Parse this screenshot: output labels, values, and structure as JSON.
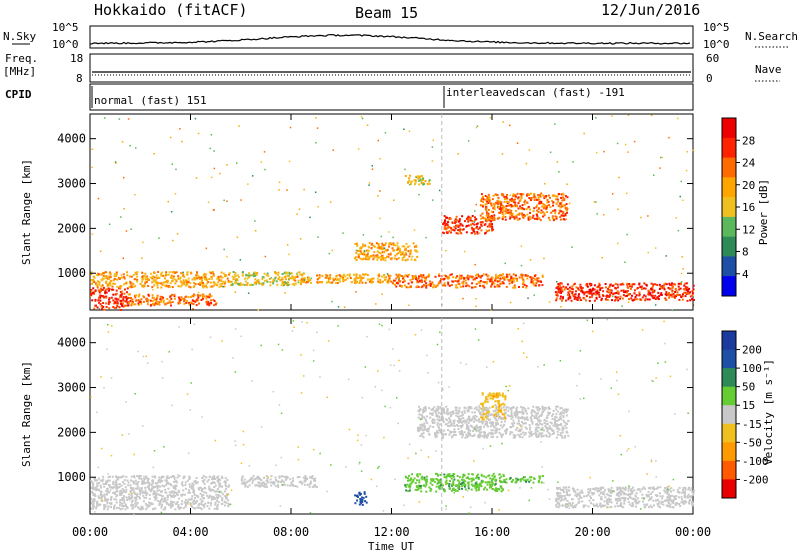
{
  "header": {
    "station": "Hokkaido (fitACF)",
    "beam": "Beam 15",
    "date": "12/Jun/2016"
  },
  "side_labels": {
    "nsky": "N.Sky",
    "freq_line1": "Freq.",
    "freq_line2": "[MHz]",
    "cpid": "CPID",
    "nsearch": "N.Search",
    "nave": "Nave"
  },
  "nsky_ticks": {
    "top": "10^5",
    "bottom": "10^0"
  },
  "nsearch_ticks": {
    "top": "10^5",
    "bottom": "10^0"
  },
  "freq_ticks": [
    "18",
    "8"
  ],
  "nave_ticks": [
    "60",
    "0"
  ],
  "cpid_entries": [
    {
      "text": "normal (fast) 151",
      "start_hour": 0.0
    },
    {
      "text": "interleavedscan (fast) -191",
      "start_hour": 14.0
    }
  ],
  "colors": {
    "power": [
      "#0000ee",
      "#1e4fa6",
      "#2e8b57",
      "#5cb85c",
      "#f0c020",
      "#ffa500",
      "#ff6a00",
      "#ff2200",
      "#ee0000"
    ],
    "velocity": [
      "#e80000",
      "#ff5a00",
      "#ff9a00",
      "#f0c020",
      "#c8c8c8",
      "#66cc33",
      "#2e8b57",
      "#1e4fa6",
      "#1a3a9e"
    ]
  },
  "chart_data": [
    {
      "type": "heatmap",
      "name_key": "power",
      "ylabel": "Slant Range [km]",
      "xlim_hours": [
        0,
        24
      ],
      "ylim_km": [
        180,
        4550
      ],
      "yticks": [
        "1000",
        "2000",
        "3000",
        "4000"
      ],
      "xticks": [
        "00:00",
        "04:00",
        "08:00",
        "12:00",
        "16:00",
        "20:00",
        "00:00"
      ],
      "colorbar": {
        "label": "Power [dB]",
        "ticks": [
          "28",
          "24",
          "20",
          "16",
          "12",
          "8",
          "4"
        ]
      },
      "regions": [
        {
          "t": [
            0.0,
            1.5
          ],
          "r": [
            200,
            700
          ],
          "value": 28
        },
        {
          "t": [
            1.5,
            5.0
          ],
          "r": [
            300,
            550
          ],
          "value": 24
        },
        {
          "t": [
            0.0,
            5.5
          ],
          "r": [
            700,
            1050
          ],
          "value": 20
        },
        {
          "t": [
            5.5,
            8.5
          ],
          "r": [
            750,
            1050
          ],
          "value": 16
        },
        {
          "t": [
            8.0,
            12.0
          ],
          "r": [
            800,
            1000
          ],
          "value": 20
        },
        {
          "t": [
            12.0,
            18.0
          ],
          "r": [
            700,
            1000
          ],
          "value": 24
        },
        {
          "t": [
            18.5,
            24.0
          ],
          "r": [
            400,
            800
          ],
          "value": 28
        },
        {
          "t": [
            14.0,
            16.0
          ],
          "r": [
            1900,
            2300
          ],
          "value": 28
        },
        {
          "t": [
            15.5,
            19.0
          ],
          "r": [
            2200,
            2800
          ],
          "value": 24
        },
        {
          "t": [
            10.5,
            13.0
          ],
          "r": [
            1300,
            1700
          ],
          "value": 20
        },
        {
          "t": [
            12.5,
            13.5
          ],
          "r": [
            3000,
            3200
          ],
          "value": 16
        }
      ]
    },
    {
      "type": "heatmap",
      "name_key": "velocity",
      "ylabel": "Slant Range [km]",
      "xlabel": "Time UT",
      "xlim_hours": [
        0,
        24
      ],
      "ylim_km": [
        180,
        4550
      ],
      "yticks": [
        "1000",
        "2000",
        "3000",
        "4000"
      ],
      "xticks": [
        "00:00",
        "04:00",
        "08:00",
        "12:00",
        "16:00",
        "20:00",
        "00:00"
      ],
      "colorbar": {
        "label": "Velocity [m s⁻¹]",
        "ticks": [
          "200",
          "100",
          "50",
          "15",
          "-15",
          "-50",
          "-100",
          "-200"
        ]
      },
      "regions": [
        {
          "t": [
            0.0,
            5.5
          ],
          "r": [
            300,
            1050
          ],
          "value": 0
        },
        {
          "t": [
            6.0,
            9.0
          ],
          "r": [
            800,
            1050
          ],
          "value": 0
        },
        {
          "t": [
            12.5,
            16.5
          ],
          "r": [
            700,
            1100
          ],
          "value": 40
        },
        {
          "t": [
            16.5,
            18.0
          ],
          "r": [
            900,
            1050
          ],
          "value": 40
        },
        {
          "t": [
            18.5,
            24.0
          ],
          "r": [
            350,
            800
          ],
          "value": 0
        },
        {
          "t": [
            15.5,
            16.5
          ],
          "r": [
            2300,
            2900
          ],
          "value": -40
        },
        {
          "t": [
            13.0,
            19.0
          ],
          "r": [
            1900,
            2600
          ],
          "value": 0
        },
        {
          "t": [
            10.5,
            11.0
          ],
          "r": [
            400,
            700
          ],
          "value": 120
        }
      ]
    }
  ]
}
